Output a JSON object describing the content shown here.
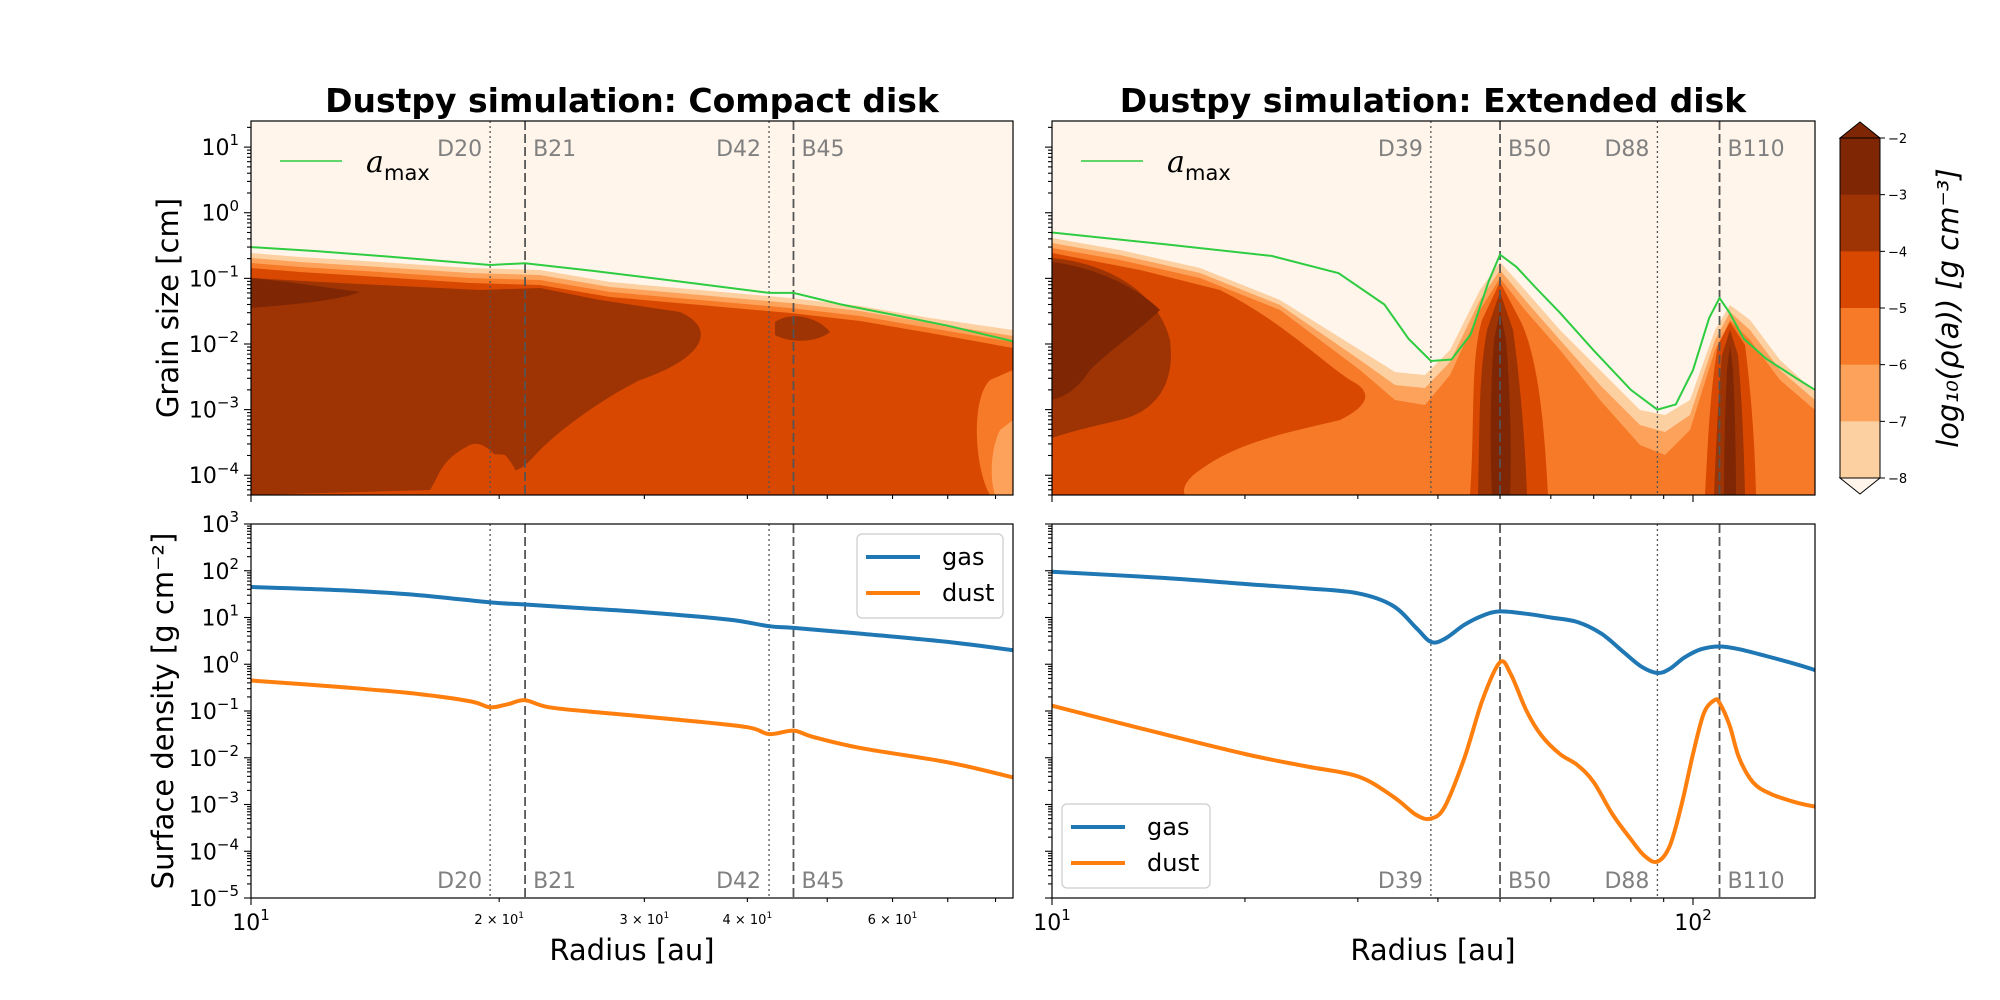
{
  "colors": {
    "gas": "#1f77b4",
    "dust": "#ff7f0e",
    "amax": "#2ecc40",
    "gap": "#555555",
    "levels": [
      "#fff5eb",
      "#fdd0a2",
      "#fda25b",
      "#f67a27",
      "#d84801",
      "#9e3303",
      "#7f2704"
    ]
  },
  "chart_data": [
    {
      "panel": "compact-contour",
      "type": "heatmap",
      "title": "Dustpy simulation: Compact disk",
      "xlabel": "",
      "ylabel": "Grain size [cm]",
      "xscale": "log",
      "yscale": "log",
      "xlim": [
        10,
        84
      ],
      "ylim": [
        5e-05,
        25
      ],
      "y_ticks": [
        {
          "v": 10,
          "l": "10",
          "e": "1"
        },
        {
          "v": 1,
          "l": "10",
          "e": "0"
        },
        {
          "v": 0.1,
          "l": "10",
          "e": "−1"
        },
        {
          "v": 0.01,
          "l": "10",
          "e": "−2"
        },
        {
          "v": 0.001,
          "l": "10",
          "e": "−3"
        },
        {
          "v": 0.0001,
          "l": "10",
          "e": "−4"
        }
      ],
      "lines": [
        {
          "label": "D20",
          "x": 19.5,
          "style": "dotted",
          "side": "left"
        },
        {
          "label": "B21",
          "x": 21.5,
          "style": "dashed",
          "side": "right"
        },
        {
          "label": "D42",
          "x": 42.5,
          "style": "dotted",
          "side": "left"
        },
        {
          "label": "B45",
          "x": 45.5,
          "style": "dashed",
          "side": "right"
        }
      ],
      "amax": {
        "x": [
          10,
          12,
          15,
          19.5,
          21.5,
          26,
          33,
          42.5,
          45.5,
          52,
          60,
          70,
          84
        ],
        "y": [
          0.3,
          0.26,
          0.21,
          0.16,
          0.17,
          0.13,
          0.09,
          0.06,
          0.06,
          0.04,
          0.028,
          0.019,
          0.011
        ]
      },
      "legend": {
        "label": "a",
        "sub": "max",
        "loc": "upper-left"
      }
    },
    {
      "panel": "extended-contour",
      "type": "heatmap",
      "title": "Dustpy simulation: Extended disk",
      "xlabel": "",
      "ylabel": "",
      "xscale": "log",
      "yscale": "log",
      "xlim": [
        10,
        155
      ],
      "ylim": [
        5e-05,
        25
      ],
      "lines": [
        {
          "label": "D39",
          "x": 39,
          "style": "dotted",
          "side": "left"
        },
        {
          "label": "B50",
          "x": 50,
          "style": "dashed",
          "side": "right"
        },
        {
          "label": "D88",
          "x": 88,
          "style": "dotted",
          "side": "left"
        },
        {
          "label": "B110",
          "x": 110,
          "style": "dashed",
          "side": "right"
        }
      ],
      "amax": {
        "x": [
          10,
          15,
          22,
          28,
          33,
          36,
          39,
          42,
          45,
          48,
          50,
          53,
          57,
          62,
          70,
          80,
          88,
          94,
          100,
          106,
          110,
          114,
          120,
          130,
          145,
          155
        ],
        "y": [
          0.5,
          0.33,
          0.22,
          0.12,
          0.04,
          0.012,
          0.0055,
          0.0058,
          0.014,
          0.09,
          0.23,
          0.15,
          0.07,
          0.03,
          0.008,
          0.002,
          0.001,
          0.0012,
          0.004,
          0.025,
          0.05,
          0.03,
          0.012,
          0.006,
          0.003,
          0.002
        ]
      },
      "legend": {
        "label": "a",
        "sub": "max",
        "loc": "upper-left"
      }
    },
    {
      "panel": "compact-surface",
      "type": "line",
      "title": "",
      "xlabel": "Radius [au]",
      "ylabel": "Surface density [g cm⁻²]",
      "xscale": "log",
      "yscale": "log",
      "xlim": [
        10,
        84
      ],
      "ylim": [
        1e-05,
        1000
      ],
      "y_ticks": [
        {
          "v": 1000,
          "l": "10",
          "e": "3"
        },
        {
          "v": 100,
          "l": "10",
          "e": "2"
        },
        {
          "v": 10,
          "l": "10",
          "e": "1"
        },
        {
          "v": 1,
          "l": "10",
          "e": "0"
        },
        {
          "v": 0.1,
          "l": "10",
          "e": "−1"
        },
        {
          "v": 0.01,
          "l": "10",
          "e": "−2"
        },
        {
          "v": 0.001,
          "l": "10",
          "e": "−3"
        },
        {
          "v": 0.0001,
          "l": "10",
          "e": "−4"
        },
        {
          "v": 1e-05,
          "l": "10",
          "e": "−5"
        }
      ],
      "x_ticks": [
        {
          "v": 10,
          "l": "10",
          "e": "1",
          "size": "big"
        },
        {
          "v": 20,
          "l": "2 × 10",
          "e": "1",
          "size": "small"
        },
        {
          "v": 30,
          "l": "3 × 10",
          "e": "1",
          "size": "small"
        },
        {
          "v": 40,
          "l": "4 × 10",
          "e": "1",
          "size": "small"
        },
        {
          "v": 60,
          "l": "6 × 10",
          "e": "1",
          "size": "small"
        }
      ],
      "lines": [
        {
          "label": "D20",
          "x": 19.5,
          "style": "dotted",
          "side": "left"
        },
        {
          "label": "B21",
          "x": 21.5,
          "style": "dashed",
          "side": "right"
        },
        {
          "label": "D42",
          "x": 42.5,
          "style": "dotted",
          "side": "left"
        },
        {
          "label": "B45",
          "x": 45.5,
          "style": "dashed",
          "side": "right"
        }
      ],
      "series": [
        {
          "name": "gas",
          "x": [
            10,
            13,
            16,
            19.5,
            21.5,
            25,
            30,
            38,
            42.5,
            45.5,
            55,
            70,
            84
          ],
          "y": [
            45,
            38,
            30,
            21,
            19,
            16,
            13,
            9,
            6.5,
            6,
            4.5,
            3,
            2
          ]
        },
        {
          "name": "dust",
          "x": [
            10,
            13,
            16,
            18.5,
            19.5,
            20.5,
            21.5,
            23,
            27,
            33,
            40,
            42.5,
            45.5,
            48,
            55,
            70,
            84
          ],
          "y": [
            0.45,
            0.32,
            0.23,
            0.16,
            0.12,
            0.14,
            0.17,
            0.12,
            0.09,
            0.065,
            0.045,
            0.032,
            0.038,
            0.028,
            0.016,
            0.008,
            0.0038
          ]
        }
      ],
      "legend": {
        "loc": "upper-right"
      }
    },
    {
      "panel": "extended-surface",
      "type": "line",
      "title": "",
      "xlabel": "Radius [au]",
      "ylabel": "",
      "xscale": "log",
      "yscale": "log",
      "xlim": [
        10,
        155
      ],
      "ylim": [
        1e-05,
        1000
      ],
      "x_ticks": [
        {
          "v": 10,
          "l": "10",
          "e": "1",
          "size": "big"
        },
        {
          "v": 100,
          "l": "10",
          "e": "2",
          "size": "big"
        }
      ],
      "lines": [
        {
          "label": "D39",
          "x": 39,
          "style": "dotted",
          "side": "left"
        },
        {
          "label": "B50",
          "x": 50,
          "style": "dashed",
          "side": "right"
        },
        {
          "label": "D88",
          "x": 88,
          "style": "dotted",
          "side": "left"
        },
        {
          "label": "B110",
          "x": 110,
          "style": "dashed",
          "side": "right"
        }
      ],
      "series": [
        {
          "name": "gas",
          "x": [
            10,
            15,
            20,
            25,
            30,
            34,
            37,
            39,
            41,
            44,
            47,
            50,
            55,
            60,
            66,
            72,
            78,
            83,
            88,
            92,
            97,
            103,
            110,
            118,
            130,
            145,
            155
          ],
          "y": [
            95,
            70,
            52,
            42,
            33,
            18,
            6,
            3,
            3.5,
            7,
            11,
            13.5,
            12,
            10,
            8,
            4.5,
            1.8,
            0.9,
            0.65,
            0.8,
            1.4,
            2.1,
            2.4,
            2.1,
            1.5,
            1,
            0.75
          ]
        },
        {
          "name": "dust",
          "x": [
            10,
            14,
            20,
            25,
            30,
            34,
            37,
            39,
            41,
            44,
            47,
            50,
            52,
            55,
            58,
            62,
            66,
            70,
            75,
            80,
            84,
            88,
            92,
            96,
            100,
            104,
            108,
            110,
            114,
            118,
            124,
            132,
            145,
            155
          ],
          "y": [
            0.13,
            0.04,
            0.012,
            0.0065,
            0.004,
            0.0015,
            0.0006,
            0.0005,
            0.0009,
            0.01,
            0.18,
            1.1,
            0.6,
            0.1,
            0.03,
            0.012,
            0.007,
            0.003,
            0.0006,
            0.00018,
            8e-05,
            6e-05,
            0.00013,
            0.001,
            0.012,
            0.09,
            0.17,
            0.15,
            0.05,
            0.01,
            0.003,
            0.0017,
            0.0011,
            0.0009
          ]
        }
      ],
      "legend": {
        "loc": "lower-left"
      }
    }
  ],
  "colorbar": {
    "label": "log₁₀(ρ(a)) [g cm⁻³]",
    "ticks": [
      "−2",
      "−3",
      "−4",
      "−5",
      "−6",
      "−7",
      "−8"
    ]
  }
}
